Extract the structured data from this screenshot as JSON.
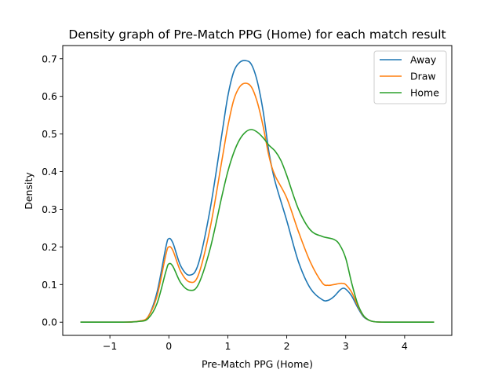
{
  "chart_data": {
    "type": "line",
    "title": "Density graph of Pre-Match PPG (Home) for each match result",
    "xlabel": "Pre-Match PPG (Home)",
    "ylabel": "Density",
    "xlim": [
      -1.8,
      4.8
    ],
    "ylim": [
      -0.035,
      0.735
    ],
    "xticks": [
      -1,
      0,
      1,
      2,
      3,
      4
    ],
    "xtick_labels": [
      "−1",
      "0",
      "1",
      "2",
      "3",
      "4"
    ],
    "yticks": [
      0.0,
      0.1,
      0.2,
      0.3,
      0.4,
      0.5,
      0.6,
      0.7
    ],
    "ytick_labels": [
      "0.0",
      "0.1",
      "0.2",
      "0.3",
      "0.4",
      "0.5",
      "0.6",
      "0.7"
    ],
    "grid": false,
    "legend_position": "top-right",
    "series": [
      {
        "name": "Away",
        "color": "#1f77b4",
        "x": [
          -1.5,
          -0.8,
          -0.5,
          -0.35,
          -0.2,
          -0.05,
          0.0,
          0.07,
          0.2,
          0.35,
          0.5,
          0.7,
          0.9,
          1.0,
          1.1,
          1.2,
          1.3,
          1.4,
          1.5,
          1.6,
          1.7,
          1.8,
          2.0,
          2.2,
          2.4,
          2.6,
          2.7,
          2.8,
          2.9,
          2.95,
          3.0,
          3.1,
          3.2,
          3.3,
          3.4,
          3.5,
          3.7,
          4.0,
          4.5
        ],
        "y": [
          0.0,
          0.0,
          0.003,
          0.015,
          0.08,
          0.2,
          0.222,
          0.21,
          0.15,
          0.125,
          0.155,
          0.3,
          0.5,
          0.6,
          0.665,
          0.69,
          0.695,
          0.685,
          0.64,
          0.56,
          0.45,
          0.375,
          0.27,
          0.16,
          0.09,
          0.06,
          0.058,
          0.068,
          0.085,
          0.09,
          0.088,
          0.07,
          0.04,
          0.015,
          0.005,
          0.001,
          0.0,
          0.0,
          0.0
        ]
      },
      {
        "name": "Draw",
        "color": "#ff7f0e",
        "x": [
          -1.5,
          -0.8,
          -0.5,
          -0.35,
          -0.2,
          -0.05,
          0.0,
          0.07,
          0.2,
          0.35,
          0.5,
          0.7,
          0.9,
          1.0,
          1.1,
          1.2,
          1.3,
          1.4,
          1.5,
          1.6,
          1.7,
          1.8,
          2.0,
          2.2,
          2.4,
          2.6,
          2.7,
          2.8,
          2.9,
          2.95,
          3.0,
          3.1,
          3.2,
          3.3,
          3.4,
          3.5,
          3.7,
          4.0,
          4.5
        ],
        "y": [
          0.0,
          0.0,
          0.003,
          0.015,
          0.07,
          0.18,
          0.2,
          0.19,
          0.135,
          0.107,
          0.125,
          0.25,
          0.43,
          0.52,
          0.59,
          0.625,
          0.635,
          0.625,
          0.585,
          0.52,
          0.44,
          0.39,
          0.33,
          0.24,
          0.16,
          0.105,
          0.098,
          0.1,
          0.103,
          0.103,
          0.1,
          0.08,
          0.045,
          0.017,
          0.005,
          0.001,
          0.0,
          0.0,
          0.0
        ]
      },
      {
        "name": "Home",
        "color": "#2ca02c",
        "x": [
          -1.5,
          -0.8,
          -0.5,
          -0.35,
          -0.2,
          -0.05,
          0.0,
          0.07,
          0.2,
          0.35,
          0.5,
          0.7,
          0.9,
          1.0,
          1.1,
          1.2,
          1.3,
          1.4,
          1.5,
          1.6,
          1.7,
          1.8,
          1.9,
          2.0,
          2.2,
          2.4,
          2.6,
          2.8,
          2.9,
          3.0,
          3.1,
          3.2,
          3.3,
          3.4,
          3.5,
          3.7,
          4.0,
          4.5
        ],
        "y": [
          0.0,
          0.0,
          0.002,
          0.01,
          0.05,
          0.135,
          0.155,
          0.148,
          0.105,
          0.085,
          0.1,
          0.195,
          0.335,
          0.4,
          0.45,
          0.485,
          0.505,
          0.512,
          0.505,
          0.49,
          0.47,
          0.455,
          0.43,
          0.39,
          0.3,
          0.245,
          0.228,
          0.22,
          0.205,
          0.17,
          0.105,
          0.05,
          0.018,
          0.005,
          0.001,
          0.0,
          0.0,
          0.0
        ]
      }
    ]
  }
}
